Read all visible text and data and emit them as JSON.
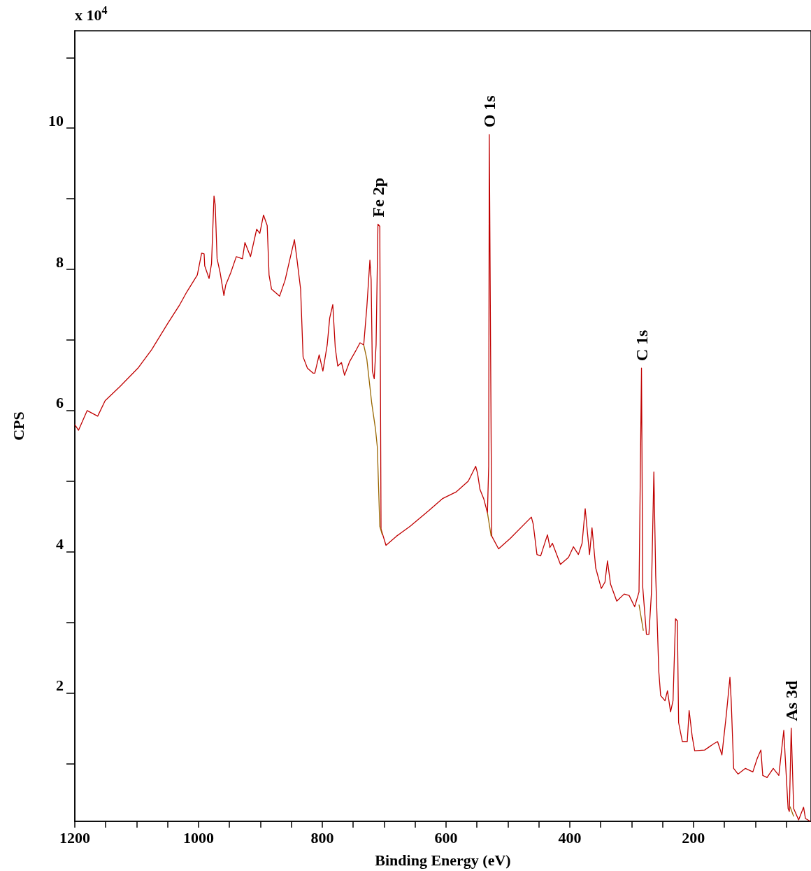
{
  "chart_data": {
    "type": "line",
    "xlabel": "Binding Energy (eV)",
    "ylabel": "CPS",
    "annotations": [
      "x 10$^{4}$",
      {
        "text": "O 1s",
        "x": 530,
        "y": 9.91
      },
      {
        "text": "Fe 2p",
        "x": 710,
        "y": 8.64
      },
      {
        "text": "C 1s",
        "x": 284,
        "y": 6.6
      },
      {
        "text": "As 3d",
        "x": 42,
        "y": 1.5
      }
    ],
    "xlim": [
      1200,
      10
    ],
    "xticks": [
      1200,
      {
        "value": 1150,
        "label": null
      },
      1000,
      {
        "value": 1050,
        "label": null
      },
      {
        "value": 1100,
        "label": null
      },
      {
        "value": 950,
        "label": null
      },
      800,
      {
        "value": 900,
        "label": null
      },
      {
        "value": 850,
        "label": null
      },
      {
        "value": 750,
        "label": null
      },
      600,
      {
        "value": 700,
        "label": null
      },
      {
        "value": 650,
        "label": null
      },
      {
        "value": 550,
        "label": null
      },
      400,
      {
        "value": 500,
        "label": null
      },
      {
        "value": 450,
        "label": null
      },
      {
        "value": 350,
        "label": null
      },
      200,
      {
        "value": 300,
        "label": null
      },
      {
        "value": 250,
        "label": null
      },
      {
        "value": 150,
        "label": null
      },
      {
        "value": 100,
        "label": null
      },
      {
        "value": 50,
        "label": null
      }
    ],
    "ylim": [
      0.18,
      11.38
    ],
    "yticks": [
      {
        "value": 1,
        "label": null
      },
      2,
      {
        "value": 3,
        "label": null
      },
      4,
      {
        "value": 5,
        "label": null
      },
      6,
      {
        "value": 7,
        "label": null
      },
      8,
      {
        "value": 9,
        "label": null
      },
      10,
      {
        "value": 11,
        "label": null
      }
    ],
    "x": [
      1200,
      1194,
      1180,
      1163,
      1151,
      1127,
      1098,
      1076,
      1050,
      1031,
      1019,
      1002,
      995,
      991,
      990,
      983,
      979,
      975,
      973,
      970,
      965,
      959,
      956,
      948,
      939,
      929,
      925,
      916,
      906,
      901,
      895,
      889,
      886,
      882,
      869,
      860,
      854,
      845,
      841,
      835,
      831,
      824,
      815,
      812,
      805,
      799,
      792,
      788,
      783,
      779,
      775,
      769,
      764,
      756,
      745,
      739,
      733,
      728,
      723,
      721,
      719,
      716,
      713,
      710,
      707,
      705,
      697,
      680,
      658,
      628,
      606,
      583,
      564,
      552,
      549,
      545,
      539,
      533,
      531,
      530,
      527,
      526,
      515,
      496,
      462,
      459,
      453,
      447,
      436,
      432,
      428,
      415,
      402,
      394,
      386,
      380,
      375,
      368,
      364,
      358,
      349,
      343,
      339,
      334,
      324,
      312,
      304,
      295,
      288,
      284,
      282,
      276,
      272,
      268,
      264,
      261,
      256,
      253,
      246,
      242,
      237,
      233,
      229,
      226,
      224,
      218,
      210,
      207,
      202,
      198,
      182,
      167,
      161,
      154,
      147,
      141,
      139,
      135,
      128,
      116,
      104,
      97,
      91,
      88,
      81,
      71,
      62,
      54,
      52,
      47,
      45,
      42,
      38,
      30,
      22,
      19,
      11
    ],
    "series": [
      {
        "color": "#c00000",
        "values": [
          5.8,
          5.72,
          6.0,
          5.92,
          6.14,
          6.34,
          6.6,
          6.86,
          7.23,
          7.49,
          7.68,
          7.92,
          8.23,
          8.22,
          8.05,
          7.87,
          8.08,
          9.04,
          8.91,
          8.15,
          7.95,
          7.63,
          7.78,
          7.95,
          8.18,
          8.15,
          8.38,
          8.18,
          8.57,
          8.51,
          8.77,
          8.62,
          7.92,
          7.72,
          7.62,
          7.85,
          8.08,
          8.42,
          8.15,
          7.72,
          6.76,
          6.6,
          6.53,
          6.53,
          6.79,
          6.56,
          6.93,
          7.31,
          7.5,
          6.89,
          6.63,
          6.68,
          6.5,
          6.69,
          6.86,
          6.96,
          6.93,
          7.46,
          8.13,
          7.85,
          6.56,
          6.45,
          6.93,
          8.64,
          8.61,
          4.32,
          4.09,
          4.22,
          4.36,
          4.58,
          4.75,
          4.85,
          5.0,
          5.21,
          5.11,
          4.88,
          4.75,
          4.55,
          5.21,
          9.91,
          5.54,
          4.22,
          4.04,
          4.19,
          4.49,
          4.39,
          3.96,
          3.94,
          4.24,
          4.06,
          4.12,
          3.82,
          3.92,
          4.07,
          3.96,
          4.12,
          4.61,
          3.96,
          4.34,
          3.77,
          3.48,
          3.57,
          3.87,
          3.54,
          3.3,
          3.4,
          3.38,
          3.22,
          3.43,
          6.6,
          3.5,
          2.83,
          2.83,
          3.4,
          5.13,
          3.66,
          2.3,
          1.96,
          1.89,
          2.03,
          1.73,
          1.89,
          3.05,
          3.02,
          1.58,
          1.31,
          1.31,
          1.75,
          1.38,
          1.18,
          1.19,
          1.28,
          1.31,
          1.12,
          1.68,
          2.22,
          1.89,
          0.93,
          0.85,
          0.93,
          0.88,
          1.07,
          1.19,
          0.83,
          0.8,
          0.93,
          0.83,
          1.47,
          1.14,
          0.36,
          0.32,
          1.5,
          0.36,
          0.2,
          0.38,
          0.22,
          0.18
        ]
      },
      {
        "color": "#996600",
        "x": [
          733,
          728,
          720,
          714,
          711,
          707,
          703,
          null,
          533,
          527,
          null,
          288,
          281,
          null,
          44,
          38
        ],
        "values": [
          6.93,
          6.73,
          6.1,
          5.74,
          5.48,
          4.36,
          4.24,
          null,
          4.55,
          4.22,
          null,
          3.25,
          2.88,
          null,
          0.39,
          0.25
        ]
      }
    ]
  }
}
